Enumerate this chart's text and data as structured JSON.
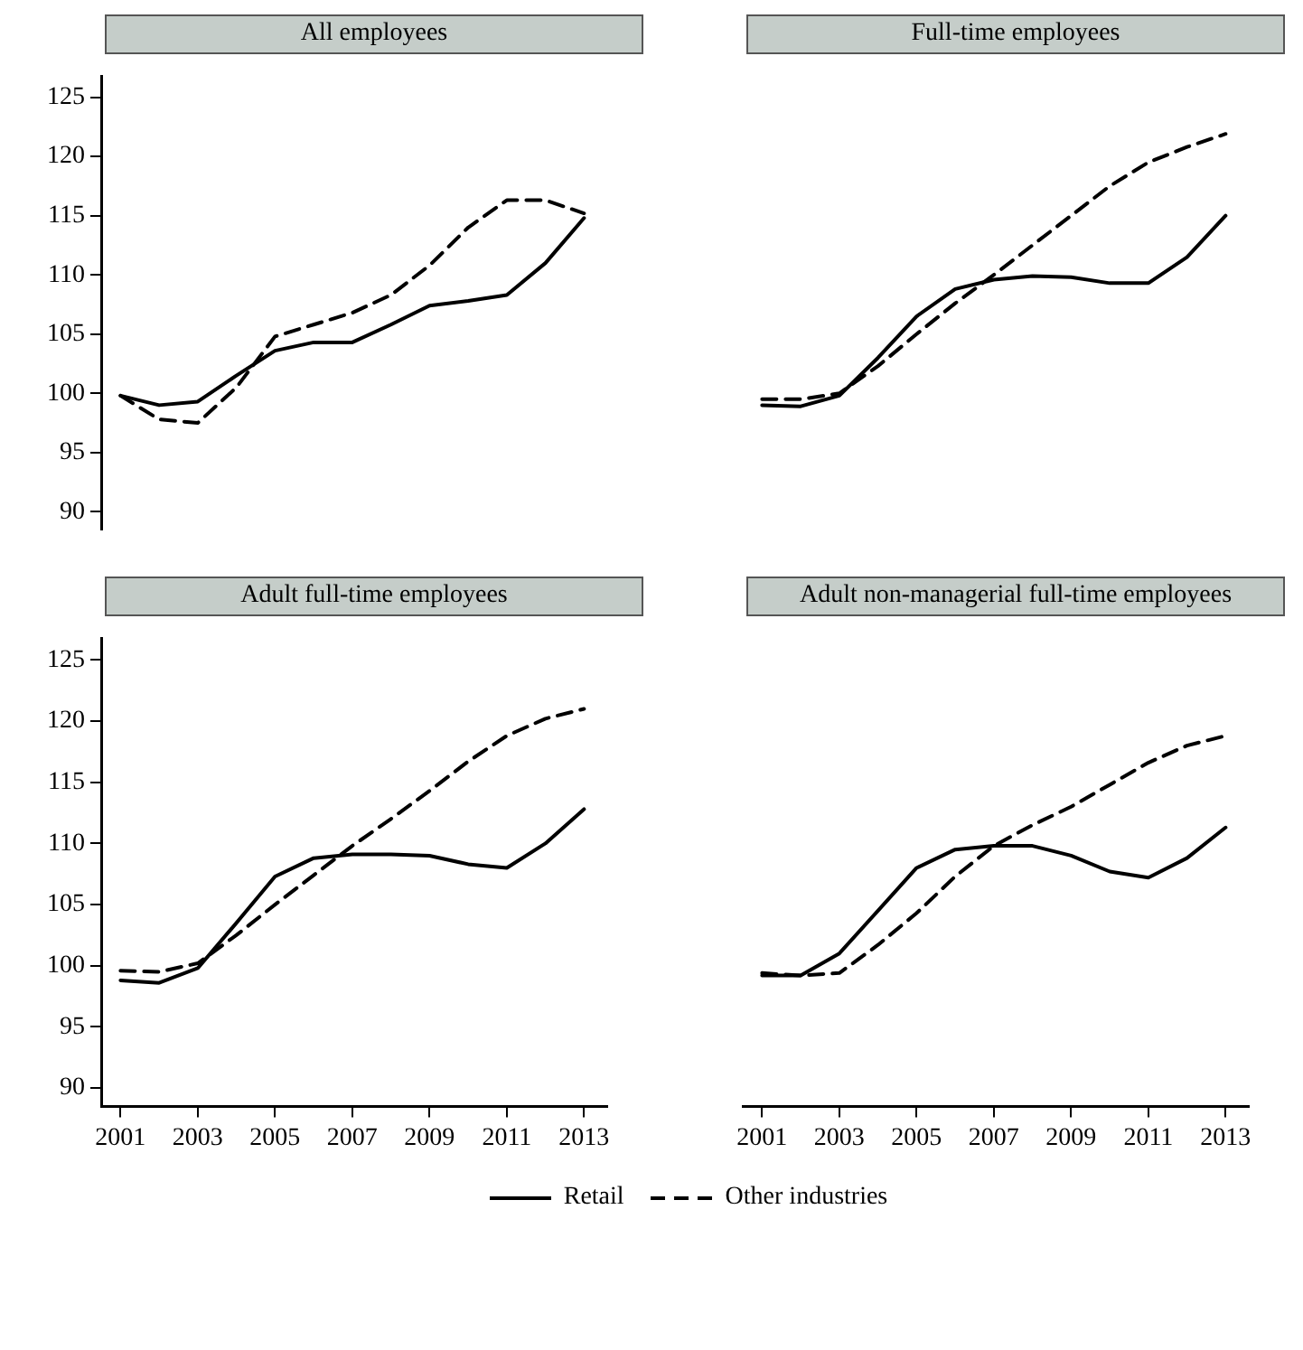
{
  "chart_data": [
    {
      "type": "line",
      "title": "All employees",
      "x": [
        2001,
        2002,
        2003,
        2004,
        2005,
        2006,
        2007,
        2008,
        2009,
        2010,
        2011,
        2012,
        2013
      ],
      "xticks": [
        2001,
        2003,
        2005,
        2007,
        2009,
        2011,
        2013
      ],
      "ylim": [
        88.5,
        126.8
      ],
      "yticks": [
        90,
        95,
        100,
        105,
        110,
        115,
        120,
        125
      ],
      "tick_labels": "y",
      "grid": false,
      "marker": "none",
      "legend": "bottom",
      "series": [
        {
          "name": "Retail",
          "color": "#000000",
          "line_style": "solid",
          "values": [
            99.8,
            99.0,
            99.3,
            101.5,
            103.6,
            104.3,
            104.3,
            105.8,
            107.4,
            107.8,
            108.3,
            111.0,
            114.8
          ]
        },
        {
          "name": "Other industries",
          "color": "#000000",
          "line_style": "dashed",
          "values": [
            99.8,
            97.8,
            97.5,
            100.5,
            104.8,
            105.8,
            106.8,
            108.3,
            110.8,
            114.0,
            116.3,
            116.3,
            115.2
          ]
        }
      ]
    },
    {
      "type": "line",
      "title": "Full-time employees",
      "x": [
        2001,
        2002,
        2003,
        2004,
        2005,
        2006,
        2007,
        2008,
        2009,
        2010,
        2011,
        2012,
        2013
      ],
      "xticks": [
        2001,
        2003,
        2005,
        2007,
        2009,
        2011,
        2013
      ],
      "yticks": [
        90,
        95,
        100,
        105,
        110,
        115,
        120,
        125
      ],
      "tick_labels": false,
      "grid": false,
      "marker": "none",
      "legend": "bottom",
      "series": [
        {
          "name": "Retail",
          "color": "#000000",
          "line_style": "solid",
          "values": [
            99.0,
            98.9,
            99.8,
            103.0,
            106.5,
            108.8,
            109.6,
            109.9,
            109.8,
            109.3,
            109.3,
            111.5,
            115.0
          ]
        },
        {
          "name": "Other industries",
          "color": "#000000",
          "line_style": "dashed",
          "values": [
            99.5,
            99.5,
            100.0,
            102.3,
            105.0,
            107.6,
            110.0,
            112.5,
            115.0,
            117.5,
            119.5,
            120.8,
            121.9
          ]
        }
      ]
    },
    {
      "type": "line",
      "title": "Adult full-time employees",
      "x": [
        2001,
        2002,
        2003,
        2004,
        2005,
        2006,
        2007,
        2008,
        2009,
        2010,
        2011,
        2012,
        2013
      ],
      "xlim": [
        2000.5,
        2013.6
      ],
      "xticks": [
        2001,
        2003,
        2005,
        2007,
        2009,
        2011,
        2013
      ],
      "ylim": [
        88.5,
        126.8
      ],
      "yticks": [
        90,
        95,
        100,
        105,
        110,
        115,
        120,
        125
      ],
      "grid": false,
      "marker": "none",
      "legend": "bottom",
      "series": [
        {
          "name": "Retail",
          "color": "#000000",
          "line_style": "solid",
          "values": [
            98.8,
            98.6,
            99.8,
            103.5,
            107.3,
            108.8,
            109.1,
            109.1,
            109.0,
            108.3,
            108.0,
            110.0,
            112.8
          ]
        },
        {
          "name": "Other industries",
          "color": "#000000",
          "line_style": "dashed",
          "values": [
            99.6,
            99.5,
            100.2,
            102.5,
            105.0,
            107.4,
            109.8,
            112.0,
            114.3,
            116.7,
            118.8,
            120.2,
            121.0
          ]
        }
      ]
    },
    {
      "type": "line",
      "title": "Adult non-managerial full-time employees",
      "x": [
        2001,
        2002,
        2003,
        2004,
        2005,
        2006,
        2007,
        2008,
        2009,
        2010,
        2011,
        2012,
        2013
      ],
      "xlim": [
        2000.5,
        2013.6
      ],
      "xticks": [
        2001,
        2003,
        2005,
        2007,
        2009,
        2011,
        2013
      ],
      "yticks": [
        90,
        95,
        100,
        105,
        110,
        115,
        120,
        125
      ],
      "tick_labels": "x",
      "grid": false,
      "marker": "none",
      "legend": "bottom",
      "series": [
        {
          "name": "Retail",
          "color": "#000000",
          "line_style": "solid",
          "values": [
            99.2,
            99.2,
            101.0,
            104.5,
            108.0,
            109.5,
            109.8,
            109.8,
            109.0,
            107.7,
            107.2,
            108.8,
            111.3
          ]
        },
        {
          "name": "Other industries",
          "color": "#000000",
          "line_style": "dashed",
          "values": [
            99.4,
            99.2,
            99.4,
            101.7,
            104.3,
            107.3,
            109.8,
            111.5,
            113.0,
            114.8,
            116.6,
            118.0,
            118.8
          ]
        }
      ]
    }
  ]
}
